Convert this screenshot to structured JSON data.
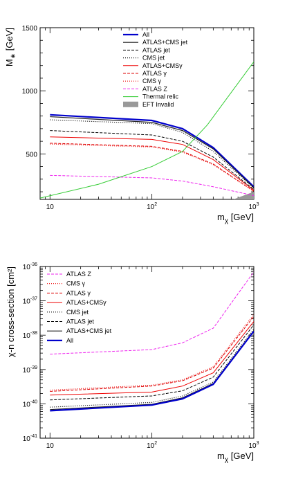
{
  "chart_data": [
    {
      "type": "line",
      "xlabel": "mχ [GeV]",
      "ylabel": "M∗ [GeV]",
      "xscale": "log",
      "xlim": [
        8,
        1000
      ],
      "ylim": [
        140,
        1500
      ],
      "legend_position": "top-right",
      "x_ticks": [
        {
          "value": 10,
          "label": "10"
        },
        {
          "value": 100,
          "label": "10",
          "exp": "2"
        },
        {
          "value": 1000,
          "label": "10",
          "exp": "3"
        }
      ],
      "y_ticks": [
        {
          "value": 500,
          "label": "500"
        },
        {
          "value": 1000,
          "label": "1000"
        },
        {
          "value": 1500,
          "label": "1500"
        }
      ],
      "series": [
        {
          "name": "All",
          "color": "#0000cc",
          "dash": "solid",
          "width": 2.2,
          "x": [
            10,
            100,
            200,
            400,
            1000
          ],
          "y": [
            810,
            765,
            700,
            550,
            240
          ]
        },
        {
          "name": "ATLAS+CMS jet",
          "color": "#222222",
          "dash": "solid",
          "width": 1.2,
          "x": [
            10,
            100,
            200,
            400,
            1000
          ],
          "y": [
            795,
            750,
            685,
            540,
            232
          ]
        },
        {
          "name": "ATLAS jet",
          "color": "#000000",
          "dash": "4,2",
          "width": 1,
          "x": [
            10,
            100,
            200,
            400,
            1000
          ],
          "y": [
            685,
            650,
            600,
            475,
            218
          ]
        },
        {
          "name": "CMS jet",
          "color": "#000000",
          "dash": "1,2",
          "width": 1.2,
          "x": [
            10,
            100,
            200,
            400,
            1000
          ],
          "y": [
            770,
            740,
            670,
            520,
            228
          ]
        },
        {
          "name": "ATLAS+CMSγ",
          "color": "#ee0000",
          "dash": "solid",
          "width": 1,
          "x": [
            10,
            100,
            200,
            400,
            1000
          ],
          "y": [
            635,
            615,
            575,
            455,
            212
          ]
        },
        {
          "name": "ATLAS γ",
          "color": "#dd0000",
          "dash": "4,2",
          "width": 1,
          "x": [
            10,
            100,
            200,
            400,
            1000
          ],
          "y": [
            585,
            560,
            520,
            420,
            205
          ]
        },
        {
          "name": "CMS γ",
          "color": "#ee0000",
          "dash": "1,2",
          "width": 1.2,
          "x": [
            10,
            100,
            200,
            400,
            1000
          ],
          "y": [
            578,
            555,
            514,
            415,
            203
          ]
        },
        {
          "name": "ATLAS Z",
          "color": "#ee22ee",
          "dash": "4,2",
          "width": 1,
          "x": [
            10,
            100,
            200,
            400,
            1000
          ],
          "y": [
            330,
            310,
            285,
            240,
            170
          ]
        },
        {
          "name": "Thermal relic",
          "color": "#33cc33",
          "dash": "solid",
          "width": 1,
          "x": [
            8,
            30,
            100,
            200,
            350,
            1000
          ],
          "y": [
            150,
            260,
            400,
            520,
            730,
            1230
          ]
        }
      ],
      "legend_extra": [
        {
          "name": "EFT Invalid",
          "color": "#999999",
          "kind": "fill"
        }
      ],
      "eft_invalid_region": {
        "x": [
          630,
          1000,
          1000
        ],
        "y": [
          140,
          140,
          200
        ]
      }
    },
    {
      "type": "line",
      "xlabel": "mχ [GeV]",
      "ylabel": "χ-n cross-section [cm²]",
      "xscale": "log",
      "yscale": "log",
      "xlim": [
        8,
        1000
      ],
      "ylim": [
        1e-41,
        1e-36
      ],
      "legend_position": "top-left",
      "x_ticks": [
        {
          "value": 10,
          "label": "10"
        },
        {
          "value": 100,
          "label": "10",
          "exp": "2"
        },
        {
          "value": 1000,
          "label": "10",
          "exp": "3"
        }
      ],
      "y_ticks": [
        {
          "value": -41,
          "label": "10",
          "exp": "-41"
        },
        {
          "value": -40,
          "label": "10",
          "exp": "-40"
        },
        {
          "value": -39,
          "label": "10",
          "exp": "-39"
        },
        {
          "value": -38,
          "label": "10",
          "exp": "-38"
        },
        {
          "value": -37,
          "label": "10",
          "exp": "-37"
        },
        {
          "value": -36,
          "label": "10",
          "exp": "-36"
        }
      ],
      "series": [
        {
          "name": "ATLAS Z",
          "color": "#ee22ee",
          "dash": "4,2",
          "width": 1,
          "x": [
            10,
            100,
            200,
            400,
            1000
          ],
          "y": [
            2.8e-39,
            3.8e-39,
            6e-39,
            1.6e-38,
            7e-37
          ]
        },
        {
          "name": "CMS γ",
          "color": "#ee0000",
          "dash": "1,2",
          "width": 1.2,
          "x": [
            10,
            100,
            200,
            400,
            1000
          ],
          "y": [
            2.5e-40,
            3.5e-40,
            5e-40,
            1.2e-39,
            4e-38
          ]
        },
        {
          "name": "ATLAS γ",
          "color": "#dd0000",
          "dash": "4,2",
          "width": 1,
          "x": [
            10,
            100,
            200,
            400,
            1000
          ],
          "y": [
            2.3e-40,
            3.3e-40,
            4.7e-40,
            1.1e-39,
            3.5e-38
          ]
        },
        {
          "name": "ATLAS+CMSγ",
          "color": "#ee0000",
          "dash": "solid",
          "width": 1,
          "x": [
            10,
            100,
            200,
            400,
            1000
          ],
          "y": [
            1.8e-40,
            2.2e-40,
            3.3e-40,
            8e-40,
            2.5e-38
          ]
        },
        {
          "name": "CMS jet",
          "color": "#000000",
          "dash": "1,2",
          "width": 1.2,
          "x": [
            10,
            100,
            200,
            400,
            1000
          ],
          "y": [
            8e-41,
            1.1e-40,
            1.7e-40,
            4.3e-40,
            1.5e-38
          ]
        },
        {
          "name": "ATLAS jet",
          "color": "#000000",
          "dash": "4,2",
          "width": 1,
          "x": [
            10,
            100,
            200,
            400,
            1000
          ],
          "y": [
            1.3e-40,
            1.7e-40,
            2.4e-40,
            6e-40,
            2e-38
          ]
        },
        {
          "name": "ATLAS+CMS jet",
          "color": "#222222",
          "dash": "solid",
          "width": 1.2,
          "x": [
            10,
            100,
            200,
            400,
            1000
          ],
          "y": [
            6.8e-41,
            9.7e-41,
            1.5e-40,
            3.9e-40,
            1.35e-38
          ]
        },
        {
          "name": "All",
          "color": "#0000cc",
          "dash": "solid",
          "width": 2.2,
          "x": [
            10,
            100,
            200,
            400,
            1000
          ],
          "y": [
            6.3e-41,
            9.2e-41,
            1.4e-40,
            3.7e-40,
            1.3e-38
          ]
        }
      ]
    }
  ]
}
